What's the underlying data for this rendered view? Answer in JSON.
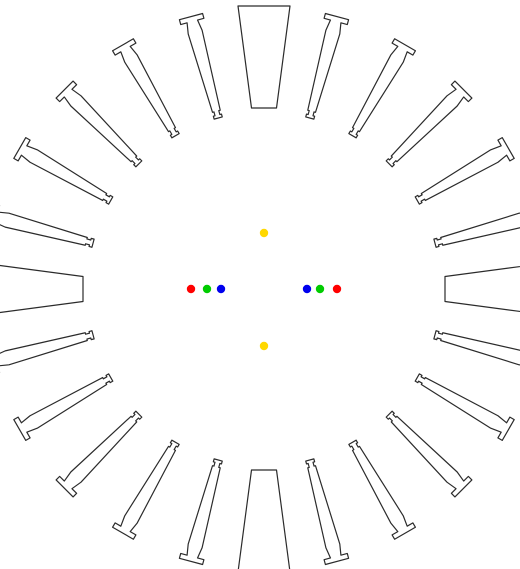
{
  "figure": {
    "background": "#ffffff",
    "outline_color": "#2b2b2b",
    "slot_count": 24,
    "wide_slots": 4,
    "markers": [
      {
        "name": "red-dot-left",
        "color": "#ff0000"
      },
      {
        "name": "green-dot-left",
        "color": "#00cc00"
      },
      {
        "name": "blue-dot-left",
        "color": "#0000ee"
      },
      {
        "name": "blue-dot-right",
        "color": "#0000ee"
      },
      {
        "name": "green-dot-right",
        "color": "#00cc00"
      },
      {
        "name": "red-dot-right",
        "color": "#ff0000"
      },
      {
        "name": "yellow-dot-top",
        "color": "#ffd800"
      },
      {
        "name": "yellow-dot-bottom",
        "color": "#ffd800"
      }
    ]
  }
}
